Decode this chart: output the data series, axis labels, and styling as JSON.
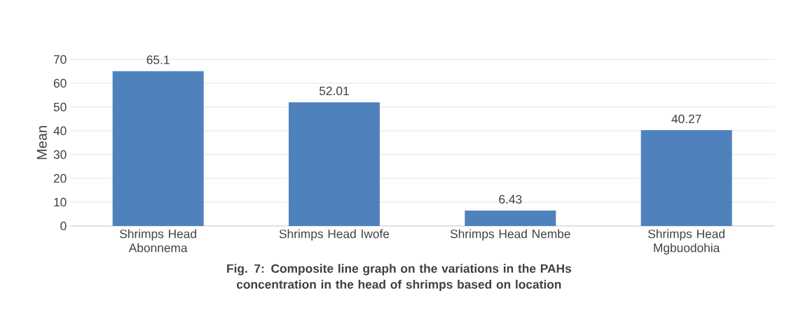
{
  "chart_data": {
    "type": "bar",
    "ylabel": "Mean",
    "categories": [
      "Shrimps Head Abonnema",
      "Shrimps Head Iwofe",
      "Shrimps Head Nembe",
      "Shrimps Head Mgbuodohia"
    ],
    "values": [
      65.1,
      52.01,
      6.43,
      40.27
    ],
    "color": "#4f81bd",
    "ylim": [
      0,
      70
    ],
    "yticks": [
      0,
      10,
      20,
      30,
      40,
      50,
      60,
      70
    ],
    "grid": "y",
    "data_labels": true,
    "annotations": [
      "Fig. 7: Composite line graph on the variations in the PAHs concentration in the head of shrimps based on location"
    ]
  }
}
